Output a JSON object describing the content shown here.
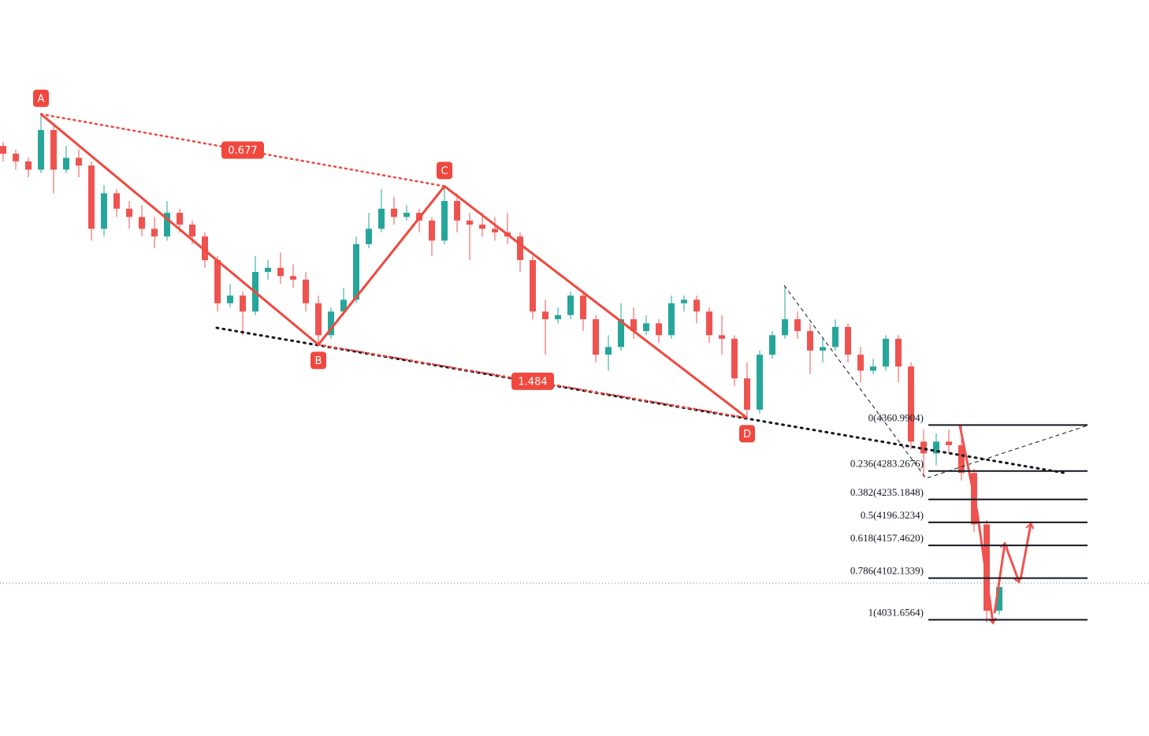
{
  "chart_data": {
    "type": "candlestick",
    "ylim": [
      3835,
      5080
    ],
    "up_color": "#26a69a",
    "down_color": "#ef5350",
    "candles": {
      "open": [
        4833,
        4820,
        4807,
        4793,
        4860,
        4793,
        4813,
        4800,
        4693,
        4753,
        4727,
        4713,
        4693,
        4680,
        4720,
        4700,
        4680,
        4640,
        4567,
        4580,
        4553,
        4620,
        4627,
        4613,
        4607,
        4567,
        4513,
        4553,
        4573,
        4667,
        4693,
        4727,
        4713,
        4720,
        4707,
        4673,
        4740,
        4707,
        4700,
        4693,
        4687,
        4680,
        4640,
        4553,
        4540,
        4547,
        4580,
        4540,
        4480,
        4493,
        4540,
        4520,
        4533,
        4513,
        4567,
        4573,
        4553,
        4513,
        4507,
        4440,
        4387,
        4480,
        4513,
        4540,
        4520,
        4487,
        4493,
        4527,
        4480,
        4453,
        4460,
        4507,
        4460,
        4333,
        4313,
        4333,
        4327,
        4280,
        4193,
        4047
      ],
      "high": [
        4840,
        4827,
        4813,
        4887,
        4867,
        4833,
        4827,
        4807,
        4767,
        4760,
        4740,
        4733,
        4713,
        4740,
        4727,
        4707,
        4687,
        4647,
        4600,
        4587,
        4647,
        4640,
        4653,
        4633,
        4620,
        4580,
        4560,
        4593,
        4680,
        4720,
        4760,
        4747,
        4733,
        4727,
        4713,
        4765,
        4753,
        4720,
        4720,
        4713,
        4720,
        4687,
        4647,
        4573,
        4560,
        4587,
        4587,
        4547,
        4513,
        4567,
        4560,
        4547,
        4540,
        4580,
        4580,
        4580,
        4560,
        4547,
        4513,
        4467,
        4487,
        4520,
        4596,
        4553,
        4533,
        4507,
        4540,
        4533,
        4493,
        4473,
        4513,
        4513,
        4467,
        4353,
        4347,
        4353,
        4360,
        4287,
        4200,
        4100
      ],
      "low": [
        4807,
        4793,
        4780,
        4787,
        4753,
        4787,
        4780,
        4673,
        4680,
        4713,
        4693,
        4680,
        4660,
        4673,
        4687,
        4667,
        4627,
        4553,
        4560,
        4513,
        4547,
        4607,
        4600,
        4593,
        4553,
        4497,
        4507,
        4547,
        4567,
        4660,
        4687,
        4700,
        4707,
        4687,
        4647,
        4667,
        4687,
        4640,
        4680,
        4673,
        4667,
        4620,
        4540,
        4480,
        4533,
        4540,
        4520,
        4467,
        4453,
        4487,
        4507,
        4513,
        4500,
        4507,
        4553,
        4533,
        4500,
        4480,
        4427,
        4373,
        4380,
        4473,
        4507,
        4507,
        4447,
        4467,
        4487,
        4467,
        4433,
        4447,
        4453,
        4433,
        4320,
        4273,
        4293,
        4313,
        4267,
        4180,
        4027,
        4040
      ],
      "close": [
        4820,
        4807,
        4793,
        4860,
        4793,
        4813,
        4800,
        4693,
        4753,
        4727,
        4713,
        4693,
        4680,
        4720,
        4700,
        4680,
        4640,
        4567,
        4580,
        4553,
        4620,
        4627,
        4613,
        4607,
        4567,
        4513,
        4553,
        4573,
        4667,
        4693,
        4727,
        4713,
        4720,
        4707,
        4673,
        4740,
        4707,
        4700,
        4693,
        4687,
        4680,
        4640,
        4553,
        4540,
        4547,
        4580,
        4540,
        4480,
        4493,
        4540,
        4520,
        4533,
        4513,
        4567,
        4573,
        4553,
        4513,
        4507,
        4440,
        4387,
        4480,
        4513,
        4540,
        4520,
        4487,
        4493,
        4527,
        4480,
        4453,
        4460,
        4507,
        4460,
        4333,
        4313,
        4333,
        4327,
        4280,
        4193,
        4047,
        4087
      ]
    },
    "pattern": {
      "color": "#f0483e",
      "points": [
        {
          "label": "A",
          "x": 3,
          "price": 4887
        },
        {
          "label": "B",
          "x": 25,
          "price": 4497
        },
        {
          "label": "C",
          "x": 35,
          "price": 4765
        },
        {
          "label": "D",
          "x": 59,
          "price": 4373
        }
      ],
      "ratios": [
        0.677,
        1.484
      ]
    },
    "fib_levels": [
      {
        "value": 4360.9904,
        "label": "0(4360.9904)"
      },
      {
        "value": 4283.2676,
        "label": "0.236(4283.2676)"
      },
      {
        "value": 4235.1848,
        "label": "0.382(4235.1848)"
      },
      {
        "value": 4196.3234,
        "label": "0.5(4196.3234)"
      },
      {
        "value": 4157.462,
        "label": "0.618(4157.4620)"
      },
      {
        "value": 4102.1339,
        "label": "0.786(4102.1339)"
      },
      {
        "value": 4031.6564,
        "label": "1(4031.6564)"
      }
    ]
  }
}
